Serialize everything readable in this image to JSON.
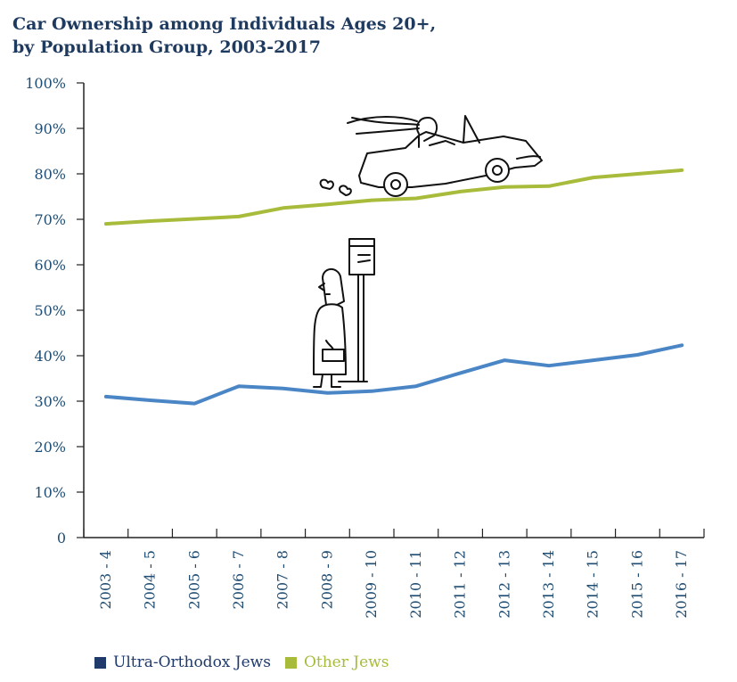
{
  "colors": {
    "ultra_orthodox": "#4a86c5",
    "other_jews": "#a9bb3b",
    "legend_ultra_orthodox": "#1f3a6b",
    "legend_other_jews": "#a9bb3b",
    "axis": "#222222",
    "text": "#1f4d73"
  },
  "chart_data": {
    "type": "line",
    "title": "Car Ownership among Individuals Ages 20+,",
    "subtitle": "by Population Group, 2003-2017",
    "xlabel": "",
    "ylabel": "",
    "ylim": [
      0,
      100
    ],
    "yticks": [
      0,
      10,
      20,
      30,
      40,
      50,
      60,
      70,
      80,
      90,
      100
    ],
    "ytick_labels": [
      "0",
      "10%",
      "20%",
      "30%",
      "40%",
      "50%",
      "60%",
      "70%",
      "80%",
      "90%",
      "100%"
    ],
    "categories": [
      "2003 - 4",
      "2004 - 5",
      "2005 - 6",
      "2006 - 7",
      "2007 - 8",
      "2008 - 9",
      "2009 - 10",
      "2010 - 11",
      "2011 - 12",
      "2012 - 13",
      "2013 - 14",
      "2014 - 15",
      "2015 - 16",
      "2016 - 17"
    ],
    "grid": false,
    "legend_position": "bottom-left",
    "series": [
      {
        "name": "Ultra-Orthodox Jews",
        "values": [
          31.0,
          30.2,
          29.5,
          33.3,
          32.8,
          31.8,
          32.2,
          33.3,
          36.2,
          39.0,
          37.8,
          39.0,
          40.2,
          42.3
        ]
      },
      {
        "name": "Other Jews",
        "values": [
          69.0,
          69.6,
          70.1,
          70.6,
          72.5,
          73.3,
          74.2,
          74.6,
          76.1,
          77.1,
          77.3,
          79.2,
          80.0,
          80.8
        ]
      }
    ]
  }
}
